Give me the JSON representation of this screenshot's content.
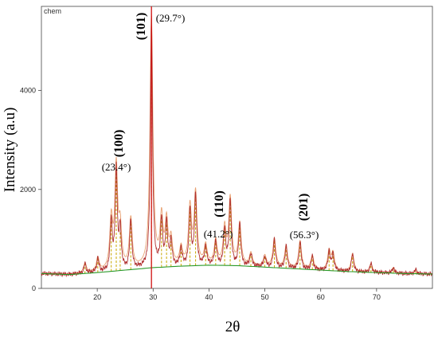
{
  "chart_data": {
    "type": "line",
    "title": "",
    "plot_name": "chem",
    "xlabel": "2θ",
    "ylabel": "Intensity (a.u)",
    "xlim": [
      10,
      80
    ],
    "ylim": [
      0,
      5700
    ],
    "xticks": [
      20,
      30,
      40,
      50,
      60,
      70
    ],
    "yticks": [
      0,
      2000,
      4000
    ],
    "grid": false,
    "colors": {
      "observed": "#b03030",
      "calculated": "#e8a070",
      "background": "#2a9a2a",
      "peak_markers": "#c8a800",
      "reference_line": "#d01010"
    },
    "peaks": [
      {
        "x": 17.8,
        "y": 500
      },
      {
        "x": 20.1,
        "y": 600
      },
      {
        "x": 22.5,
        "y": 1350
      },
      {
        "x": 23.4,
        "y": 2400,
        "hkl": "(100)",
        "angle": "(23.4°)"
      },
      {
        "x": 24.1,
        "y": 1150
      },
      {
        "x": 26.0,
        "y": 1380
      },
      {
        "x": 29.7,
        "y": 5500,
        "hkl": "(101)",
        "angle": "(29.7°)"
      },
      {
        "x": 31.5,
        "y": 1380
      },
      {
        "x": 32.4,
        "y": 1300
      },
      {
        "x": 33.2,
        "y": 950
      },
      {
        "x": 35.0,
        "y": 800
      },
      {
        "x": 36.6,
        "y": 1620
      },
      {
        "x": 37.6,
        "y": 1900
      },
      {
        "x": 39.4,
        "y": 850
      },
      {
        "x": 41.2,
        "y": 950,
        "hkl": "(110)",
        "angle": "(41.2°)"
      },
      {
        "x": 42.8,
        "y": 1200
      },
      {
        "x": 43.8,
        "y": 1800
      },
      {
        "x": 45.5,
        "y": 1300
      },
      {
        "x": 47.5,
        "y": 700
      },
      {
        "x": 50.0,
        "y": 650
      },
      {
        "x": 51.7,
        "y": 1000
      },
      {
        "x": 53.8,
        "y": 850
      },
      {
        "x": 56.3,
        "y": 950,
        "hkl": "(201)",
        "angle": "(56.3°)"
      },
      {
        "x": 58.5,
        "y": 650
      },
      {
        "x": 61.5,
        "y": 750
      },
      {
        "x": 62.2,
        "y": 700
      },
      {
        "x": 65.7,
        "y": 700
      },
      {
        "x": 69.0,
        "y": 500
      },
      {
        "x": 73.0,
        "y": 420
      },
      {
        "x": 77.0,
        "y": 380
      }
    ],
    "background_curve": {
      "x": [
        10,
        15,
        20,
        25,
        30,
        35,
        40,
        45,
        50,
        55,
        60,
        65,
        70,
        75,
        80
      ],
      "y": [
        300,
        280,
        320,
        370,
        420,
        450,
        470,
        460,
        430,
        400,
        370,
        340,
        320,
        300,
        290
      ]
    }
  }
}
